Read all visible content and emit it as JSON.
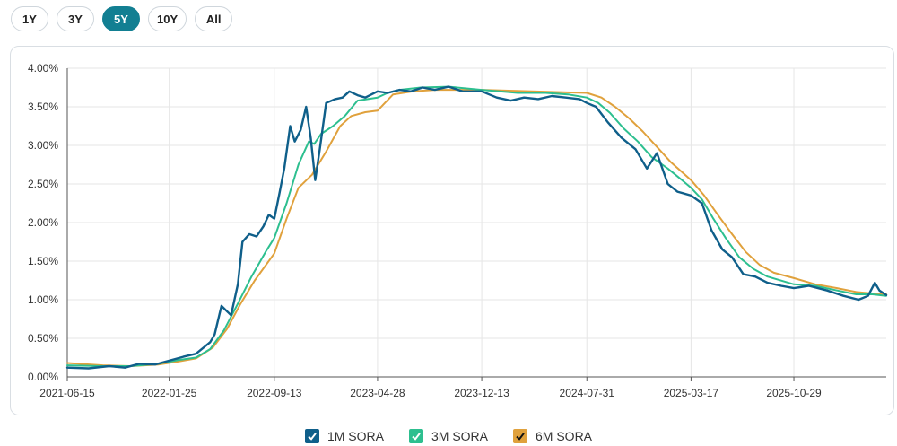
{
  "range_buttons": [
    {
      "label": "1Y",
      "active": false
    },
    {
      "label": "3Y",
      "active": false
    },
    {
      "label": "5Y",
      "active": true
    },
    {
      "label": "10Y",
      "active": false
    },
    {
      "label": "All",
      "active": false
    }
  ],
  "colors": {
    "accent": "#127f92",
    "grid": "#e6e6e6"
  },
  "chart_data": {
    "type": "line",
    "title": "",
    "xlabel": "",
    "ylabel": "",
    "x_ticks": [
      "2021-06-15",
      "2022-01-25",
      "2022-09-13",
      "2023-04-28",
      "2023-12-13",
      "2024-07-31",
      "2025-03-17",
      "2025-10-29"
    ],
    "x_range": [
      "2021-06-15",
      "2026-05-20"
    ],
    "ylim": [
      0,
      4
    ],
    "y_ticks": [
      "0.00%",
      "0.50%",
      "1.00%",
      "1.50%",
      "2.00%",
      "2.50%",
      "3.00%",
      "3.50%",
      "4.00%"
    ],
    "grid": true,
    "legend_position": "bottom",
    "series": [
      {
        "name": "1M SORA",
        "color": "#0f5f8a",
        "points": [
          [
            "2021-06-15",
            0.12
          ],
          [
            "2021-08-01",
            0.11
          ],
          [
            "2021-09-15",
            0.14
          ],
          [
            "2021-10-20",
            0.12
          ],
          [
            "2021-11-20",
            0.17
          ],
          [
            "2021-12-25",
            0.16
          ],
          [
            "2022-01-25",
            0.21
          ],
          [
            "2022-02-25",
            0.26
          ],
          [
            "2022-03-25",
            0.3
          ],
          [
            "2022-04-25",
            0.45
          ],
          [
            "2022-05-05",
            0.55
          ],
          [
            "2022-05-20",
            0.92
          ],
          [
            "2022-06-01",
            0.85
          ],
          [
            "2022-06-10",
            0.8
          ],
          [
            "2022-06-25",
            1.2
          ],
          [
            "2022-07-05",
            1.75
          ],
          [
            "2022-07-20",
            1.85
          ],
          [
            "2022-08-05",
            1.82
          ],
          [
            "2022-08-20",
            1.95
          ],
          [
            "2022-09-01",
            2.1
          ],
          [
            "2022-09-13",
            2.05
          ],
          [
            "2022-09-25",
            2.4
          ],
          [
            "2022-10-05",
            2.7
          ],
          [
            "2022-10-18",
            3.25
          ],
          [
            "2022-10-28",
            3.05
          ],
          [
            "2022-11-10",
            3.2
          ],
          [
            "2022-11-22",
            3.5
          ],
          [
            "2022-12-02",
            3.1
          ],
          [
            "2022-12-12",
            2.55
          ],
          [
            "2022-12-22",
            2.95
          ],
          [
            "2023-01-05",
            3.55
          ],
          [
            "2023-01-25",
            3.6
          ],
          [
            "2023-02-10",
            3.62
          ],
          [
            "2023-02-25",
            3.7
          ],
          [
            "2023-03-15",
            3.65
          ],
          [
            "2023-04-01",
            3.62
          ],
          [
            "2023-04-28",
            3.7
          ],
          [
            "2023-05-20",
            3.68
          ],
          [
            "2023-06-15",
            3.72
          ],
          [
            "2023-07-10",
            3.7
          ],
          [
            "2023-08-05",
            3.75
          ],
          [
            "2023-09-01",
            3.72
          ],
          [
            "2023-10-01",
            3.76
          ],
          [
            "2023-11-01",
            3.7
          ],
          [
            "2023-12-13",
            3.7
          ],
          [
            "2024-01-15",
            3.62
          ],
          [
            "2024-02-15",
            3.58
          ],
          [
            "2024-03-15",
            3.62
          ],
          [
            "2024-04-15",
            3.6
          ],
          [
            "2024-05-15",
            3.64
          ],
          [
            "2024-06-15",
            3.62
          ],
          [
            "2024-07-15",
            3.6
          ],
          [
            "2024-07-31",
            3.55
          ],
          [
            "2024-08-20",
            3.5
          ],
          [
            "2024-09-15",
            3.3
          ],
          [
            "2024-10-15",
            3.1
          ],
          [
            "2024-11-15",
            2.95
          ],
          [
            "2024-12-10",
            2.7
          ],
          [
            "2025-01-01",
            2.9
          ],
          [
            "2025-01-25",
            2.5
          ],
          [
            "2025-02-15",
            2.4
          ],
          [
            "2025-03-17",
            2.35
          ],
          [
            "2025-04-10",
            2.25
          ],
          [
            "2025-05-01",
            1.9
          ],
          [
            "2025-05-25",
            1.65
          ],
          [
            "2025-06-15",
            1.55
          ],
          [
            "2025-07-10",
            1.33
          ],
          [
            "2025-08-05",
            1.3
          ],
          [
            "2025-09-01",
            1.22
          ],
          [
            "2025-10-01",
            1.18
          ],
          [
            "2025-10-29",
            1.15
          ],
          [
            "2025-12-01",
            1.18
          ],
          [
            "2026-01-10",
            1.12
          ],
          [
            "2026-02-15",
            1.05
          ],
          [
            "2026-03-20",
            1.0
          ],
          [
            "2026-04-10",
            1.05
          ],
          [
            "2026-04-25",
            1.22
          ],
          [
            "2026-05-05",
            1.12
          ],
          [
            "2026-05-20",
            1.06
          ]
        ]
      },
      {
        "name": "3M SORA",
        "color": "#2dbf8f",
        "points": [
          [
            "2021-06-15",
            0.15
          ],
          [
            "2021-09-01",
            0.14
          ],
          [
            "2021-11-01",
            0.14
          ],
          [
            "2022-01-01",
            0.17
          ],
          [
            "2022-02-15",
            0.22
          ],
          [
            "2022-03-25",
            0.25
          ],
          [
            "2022-04-25",
            0.36
          ],
          [
            "2022-05-25",
            0.6
          ],
          [
            "2022-06-25",
            0.95
          ],
          [
            "2022-07-25",
            1.3
          ],
          [
            "2022-08-25",
            1.62
          ],
          [
            "2022-09-13",
            1.8
          ],
          [
            "2022-10-10",
            2.25
          ],
          [
            "2022-11-05",
            2.75
          ],
          [
            "2022-11-28",
            3.05
          ],
          [
            "2022-12-10",
            3.02
          ],
          [
            "2022-12-25",
            3.15
          ],
          [
            "2023-01-20",
            3.25
          ],
          [
            "2023-02-15",
            3.38
          ],
          [
            "2023-03-15",
            3.58
          ],
          [
            "2023-04-28",
            3.62
          ],
          [
            "2023-05-20",
            3.68
          ],
          [
            "2023-06-15",
            3.72
          ],
          [
            "2023-08-01",
            3.75
          ],
          [
            "2023-10-01",
            3.76
          ],
          [
            "2023-12-13",
            3.72
          ],
          [
            "2024-03-01",
            3.68
          ],
          [
            "2024-05-01",
            3.68
          ],
          [
            "2024-06-20",
            3.66
          ],
          [
            "2024-07-31",
            3.62
          ],
          [
            "2024-08-25",
            3.55
          ],
          [
            "2024-09-20",
            3.42
          ],
          [
            "2024-10-20",
            3.22
          ],
          [
            "2024-11-20",
            3.05
          ],
          [
            "2024-12-20",
            2.85
          ],
          [
            "2025-01-25",
            2.7
          ],
          [
            "2025-02-25",
            2.55
          ],
          [
            "2025-03-17",
            2.45
          ],
          [
            "2025-04-10",
            2.3
          ],
          [
            "2025-05-05",
            2.05
          ],
          [
            "2025-06-01",
            1.8
          ],
          [
            "2025-07-01",
            1.55
          ],
          [
            "2025-08-01",
            1.4
          ],
          [
            "2025-09-01",
            1.3
          ],
          [
            "2025-10-29",
            1.2
          ],
          [
            "2025-12-15",
            1.18
          ],
          [
            "2026-02-01",
            1.12
          ],
          [
            "2026-03-15",
            1.07
          ],
          [
            "2026-04-20",
            1.07
          ],
          [
            "2026-05-20",
            1.05
          ]
        ]
      },
      {
        "name": "6M SORA",
        "color": "#e0a13c",
        "points": [
          [
            "2021-06-15",
            0.18
          ],
          [
            "2021-09-01",
            0.15
          ],
          [
            "2021-11-01",
            0.14
          ],
          [
            "2022-01-01",
            0.16
          ],
          [
            "2022-02-15",
            0.2
          ],
          [
            "2022-03-25",
            0.24
          ],
          [
            "2022-05-01",
            0.38
          ],
          [
            "2022-06-01",
            0.62
          ],
          [
            "2022-07-01",
            0.95
          ],
          [
            "2022-08-01",
            1.25
          ],
          [
            "2022-09-13",
            1.6
          ],
          [
            "2022-10-10",
            2.05
          ],
          [
            "2022-11-05",
            2.45
          ],
          [
            "2022-12-05",
            2.62
          ],
          [
            "2023-01-05",
            2.92
          ],
          [
            "2023-02-05",
            3.25
          ],
          [
            "2023-03-01",
            3.38
          ],
          [
            "2023-04-01",
            3.43
          ],
          [
            "2023-04-28",
            3.45
          ],
          [
            "2023-06-01",
            3.66
          ],
          [
            "2023-07-15",
            3.7
          ],
          [
            "2023-09-01",
            3.72
          ],
          [
            "2023-12-13",
            3.72
          ],
          [
            "2024-04-01",
            3.7
          ],
          [
            "2024-07-31",
            3.68
          ],
          [
            "2024-09-01",
            3.62
          ],
          [
            "2024-10-01",
            3.5
          ],
          [
            "2024-11-01",
            3.35
          ],
          [
            "2024-12-01",
            3.18
          ],
          [
            "2025-01-01",
            2.98
          ],
          [
            "2025-02-01",
            2.78
          ],
          [
            "2025-03-17",
            2.55
          ],
          [
            "2025-04-15",
            2.35
          ],
          [
            "2025-05-15",
            2.1
          ],
          [
            "2025-06-15",
            1.85
          ],
          [
            "2025-07-15",
            1.62
          ],
          [
            "2025-08-15",
            1.45
          ],
          [
            "2025-09-15",
            1.35
          ],
          [
            "2025-10-29",
            1.28
          ],
          [
            "2025-12-15",
            1.2
          ],
          [
            "2026-02-01",
            1.15
          ],
          [
            "2026-03-15",
            1.1
          ],
          [
            "2026-04-20",
            1.08
          ],
          [
            "2026-05-20",
            1.07
          ]
        ]
      }
    ]
  }
}
